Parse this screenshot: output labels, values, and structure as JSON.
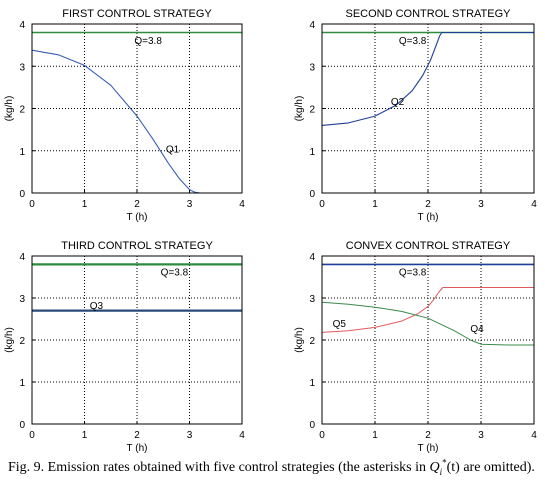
{
  "caption": {
    "prefix": "Fig. 9. Emission rates obtained with five control strategies (the asterisks in ",
    "q_symbol": "Q",
    "q_sub": "i",
    "q_sup": "*",
    "q_arg": "(t)",
    "suffix": " are omitted)."
  },
  "chart_data": [
    {
      "type": "line",
      "title": "FIRST CONTROL STRATEGY",
      "xlabel": "T (h)",
      "ylabel": "(kg/h)",
      "xlim": [
        0,
        4
      ],
      "ylim": [
        0,
        4
      ],
      "xticks": [
        0,
        1,
        2,
        3,
        4
      ],
      "yticks": [
        0,
        1,
        2,
        3,
        4
      ],
      "grid": "dotted",
      "series": [
        {
          "name": "Q=3.8",
          "color": "#2e8b3e",
          "width": 1.4,
          "x": [
            0,
            4
          ],
          "y": [
            3.8,
            3.8
          ]
        },
        {
          "name": "Q1",
          "color": "#3a5fb5",
          "width": 1.1,
          "x": [
            0,
            0.5,
            1.0,
            1.5,
            2.0,
            2.3,
            2.6,
            2.8,
            3.0,
            3.1,
            3.2,
            3.4,
            4.0
          ],
          "y": [
            3.38,
            3.27,
            3.02,
            2.55,
            1.82,
            1.28,
            0.7,
            0.35,
            0.08,
            0.02,
            0.0,
            0.0,
            0.0
          ]
        }
      ],
      "annotations": [
        {
          "text": "Q=3.8",
          "x": 1.95,
          "y": 3.62
        },
        {
          "text": "Q1",
          "x": 2.55,
          "y": 1.05
        }
      ]
    },
    {
      "type": "line",
      "title": "SECOND CONTROL STRATEGY",
      "xlabel": "T (h)",
      "ylabel": "(kg/h)",
      "xlim": [
        0,
        4
      ],
      "ylim": [
        0,
        4
      ],
      "xticks": [
        0,
        1,
        2,
        3,
        4
      ],
      "yticks": [
        0,
        1,
        2,
        3,
        4
      ],
      "grid": "dotted",
      "series": [
        {
          "name": "Q=3.8",
          "color": "#2e8b3e",
          "width": 1.4,
          "x": [
            0,
            4
          ],
          "y": [
            3.8,
            3.8
          ]
        },
        {
          "name": "Q2",
          "color": "#1f3f99",
          "width": 1.1,
          "x": [
            0,
            0.5,
            1.0,
            1.4,
            1.7,
            1.9,
            2.05,
            2.15,
            2.22,
            2.26,
            4.0
          ],
          "y": [
            1.6,
            1.66,
            1.82,
            2.08,
            2.42,
            2.78,
            3.15,
            3.48,
            3.72,
            3.8,
            3.8
          ]
        }
      ],
      "annotations": [
        {
          "text": "Q=3.8",
          "x": 1.45,
          "y": 3.62
        },
        {
          "text": "Q2",
          "x": 1.3,
          "y": 2.18
        }
      ]
    },
    {
      "type": "line",
      "title": "THIRD CONTROL STRATEGY",
      "xlabel": "T (h)",
      "ylabel": "(kg/h)",
      "xlim": [
        0,
        4
      ],
      "ylim": [
        0,
        4
      ],
      "xticks": [
        0,
        1,
        2,
        3,
        4
      ],
      "yticks": [
        0,
        1,
        2,
        3,
        4
      ],
      "grid": "dotted",
      "series": [
        {
          "name": "Q=3.8",
          "color": "#2e8b3e",
          "width": 2.2,
          "x": [
            0,
            4
          ],
          "y": [
            3.8,
            3.8
          ]
        },
        {
          "name": "Q3",
          "color": "#2a4a7a",
          "width": 2.2,
          "x": [
            0,
            4
          ],
          "y": [
            2.7,
            2.7
          ]
        }
      ],
      "annotations": [
        {
          "text": "Q=3.8",
          "x": 2.45,
          "y": 3.63
        },
        {
          "text": "Q3",
          "x": 1.1,
          "y": 2.83
        }
      ]
    },
    {
      "type": "line",
      "title": "CONVEX CONTROL STRATEGY",
      "xlabel": "T (h)",
      "ylabel": "(kg/h)",
      "xlim": [
        0,
        4
      ],
      "ylim": [
        0,
        4
      ],
      "xticks": [
        0,
        1,
        2,
        3,
        4
      ],
      "yticks": [
        0,
        1,
        2,
        3,
        4
      ],
      "grid": "dotted",
      "series": [
        {
          "name": "Q=3.8",
          "color": "#1f3f99",
          "width": 1.6,
          "x": [
            0,
            4
          ],
          "y": [
            3.8,
            3.8
          ]
        },
        {
          "name": "Q5",
          "color": "#e05a5a",
          "width": 1.0,
          "x": [
            0,
            0.5,
            1.0,
            1.5,
            1.8,
            2.0,
            2.1,
            2.2,
            2.28,
            4.0
          ],
          "y": [
            2.18,
            2.22,
            2.3,
            2.45,
            2.62,
            2.8,
            2.95,
            3.13,
            3.25,
            3.25
          ]
        },
        {
          "name": "Q4",
          "color": "#3a8a4a",
          "width": 1.0,
          "x": [
            0,
            0.5,
            1.0,
            1.5,
            2.0,
            2.5,
            2.8,
            3.0,
            3.5,
            4.0
          ],
          "y": [
            2.9,
            2.85,
            2.78,
            2.68,
            2.52,
            2.22,
            2.0,
            1.9,
            1.88,
            1.88
          ]
        }
      ],
      "annotations": [
        {
          "text": "Q=3.8",
          "x": 1.45,
          "y": 3.63
        },
        {
          "text": "Q5",
          "x": 0.2,
          "y": 2.4
        },
        {
          "text": "Q4",
          "x": 2.8,
          "y": 2.28
        }
      ]
    }
  ]
}
